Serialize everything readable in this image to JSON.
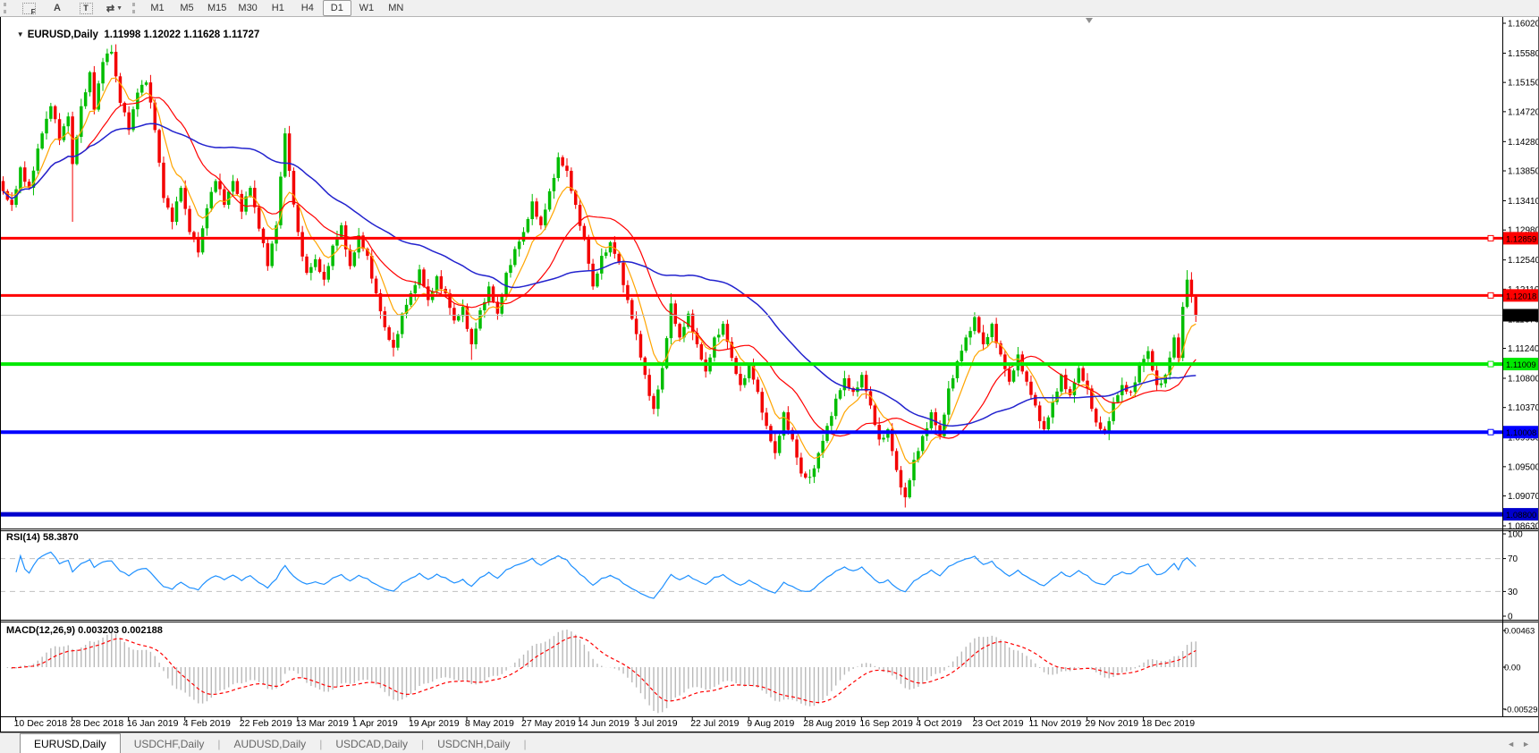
{
  "toolbar": {
    "tools": [
      {
        "name": "fibonacci-tool",
        "glyph": "F"
      },
      {
        "name": "text-tool",
        "glyph": "A"
      },
      {
        "name": "text-label-tool",
        "glyph": "T"
      },
      {
        "name": "arrows-tool",
        "glyph": "⇄",
        "caret": "▼"
      }
    ],
    "timeframes": [
      {
        "label": "M1",
        "active": false
      },
      {
        "label": "M5",
        "active": false
      },
      {
        "label": "M15",
        "active": false
      },
      {
        "label": "M30",
        "active": false
      },
      {
        "label": "H1",
        "active": false
      },
      {
        "label": "H4",
        "active": false
      },
      {
        "label": "D1",
        "active": true
      },
      {
        "label": "W1",
        "active": false
      },
      {
        "label": "MN",
        "active": false
      }
    ]
  },
  "chart": {
    "dropdown_glyph": "▼",
    "title_symbol": "EURUSD,Daily",
    "quote": "1.11998 1.12022 1.11628 1.11727",
    "open": "1.11998",
    "high": "1.12022",
    "low": "1.11628",
    "close": "1.11727",
    "colors": {
      "bull": "#00BD00",
      "bear": "#F30000",
      "background": "#FFFFFF",
      "border": "#000000"
    }
  },
  "price_axis": {
    "ticks": [
      "1.16020",
      "1.15580",
      "1.15150",
      "1.14720",
      "1.14280",
      "1.13850",
      "1.13410",
      "1.12980",
      "1.12540",
      "1.12110",
      "1.11670",
      "1.11240",
      "1.10800",
      "1.10370",
      "1.09930",
      "1.09500",
      "1.09070",
      "1.08630"
    ]
  },
  "levels": [
    {
      "label": "1.12859",
      "value": 1.12859,
      "color": "#FF0000",
      "text_color": "#FFFFFF",
      "width": 3,
      "handle": true
    },
    {
      "label": "1.12018",
      "value": 1.12018,
      "color": "#FF0000",
      "text_color": "#FFFFFF",
      "width": 3,
      "handle": true
    },
    {
      "label": "1.11009",
      "value": 1.11009,
      "color": "#00E800",
      "text_color": "#000000",
      "width": 4,
      "handle": true
    },
    {
      "label": "1.10008",
      "value": 1.10008,
      "color": "#0000FF",
      "text_color": "#FFFFFF",
      "width": 4,
      "handle": true
    },
    {
      "label": "1.08800",
      "value": 1.088,
      "color": "#0000CD",
      "text_color": "#FFFFFF",
      "width": 5,
      "handle": false
    }
  ],
  "current_price": {
    "label": "1.11727",
    "value": 1.11727,
    "line_color": "#BEBEBE",
    "badge_bg": "#000000",
    "badge_text": "#FFFFFF"
  },
  "moving_averages": [
    {
      "name": "fast-ma",
      "kind": "EMA",
      "period": 8,
      "color": "#FFA500",
      "width": 1.2
    },
    {
      "name": "mid-ma",
      "kind": "SMA",
      "period": 20,
      "color": "#FF0000",
      "width": 1.2
    },
    {
      "name": "slow-ma",
      "kind": "SMA",
      "period": 50,
      "color": "#2323CE",
      "width": 1.5
    }
  ],
  "rsi": {
    "label": "RSI(14) 58.3870",
    "period": 14,
    "current": 58.387,
    "color": "#1E90FF",
    "scale_ticks": [
      "100",
      "70",
      "30",
      "0"
    ],
    "dashed_levels": [
      70,
      30
    ]
  },
  "macd": {
    "label": "MACD(12,26,9) 0.003203 0.002188",
    "fast": 12,
    "slow": 26,
    "signal": 9,
    "current_macd": 0.003203,
    "current_signal": 0.002188,
    "hist_color": "#B9B9B9",
    "signal_color": "#FF0000",
    "scale_ticks": [
      "0.00463",
      "0.00",
      "-0.00529"
    ]
  },
  "date_axis": {
    "labels": [
      "10 Dec 2018",
      "28 Dec 2018",
      "16 Jan 2019",
      "4 Feb 2019",
      "22 Feb 2019",
      "13 Mar 2019",
      "1 Apr 2019",
      "19 Apr 2019",
      "8 May 2019",
      "27 May 2019",
      "14 Jun 2019",
      "3 Jul 2019",
      "22 Jul 2019",
      "9 Aug 2019",
      "28 Aug 2019",
      "16 Sep 2019",
      "4 Oct 2019",
      "23 Oct 2019",
      "11 Nov 2019",
      "29 Nov 2019",
      "18 Dec 2019"
    ]
  },
  "tabs": {
    "items": [
      {
        "label": "EURUSD,Daily",
        "active": true
      },
      {
        "label": "USDCHF,Daily",
        "active": false
      },
      {
        "label": "AUDUSD,Daily",
        "active": false
      },
      {
        "label": "USDCAD,Daily",
        "active": false
      },
      {
        "label": "USDCNH,Daily",
        "active": false
      }
    ],
    "nav_left": "◄",
    "nav_right": "►"
  },
  "chart_data": {
    "type": "candlestick",
    "symbol": "EURUSD",
    "timeframe": "Daily",
    "n_candles": 276,
    "y_range": [
      1.0859,
      1.161
    ],
    "x_start_label": "10 Dec 2018",
    "last_candle": {
      "o": 1.11998,
      "h": 1.12022,
      "l": 1.11628,
      "c": 1.11727
    },
    "close_path_waypoints": [
      [
        0,
        1.1355
      ],
      [
        2,
        1.1335
      ],
      [
        4,
        1.139
      ],
      [
        6,
        1.136
      ],
      [
        9,
        1.144
      ],
      [
        11,
        1.148
      ],
      [
        13,
        1.143
      ],
      [
        15,
        1.1465
      ],
      [
        16,
        1.1395
      ],
      [
        18,
        1.148
      ],
      [
        20,
        1.153
      ],
      [
        21,
        1.1475
      ],
      [
        23,
        1.1545
      ],
      [
        25,
        1.156
      ],
      [
        27,
        1.1485
      ],
      [
        29,
        1.1445
      ],
      [
        31,
        1.15
      ],
      [
        33,
        1.1515
      ],
      [
        35,
        1.1445
      ],
      [
        37,
        1.1345
      ],
      [
        39,
        1.131
      ],
      [
        41,
        1.136
      ],
      [
        43,
        1.1295
      ],
      [
        45,
        1.1265
      ],
      [
        47,
        1.133
      ],
      [
        49,
        1.137
      ],
      [
        51,
        1.1335
      ],
      [
        53,
        1.137
      ],
      [
        55,
        1.1325
      ],
      [
        57,
        1.136
      ],
      [
        59,
        1.13
      ],
      [
        61,
        1.1245
      ],
      [
        63,
        1.1305
      ],
      [
        65,
        1.144
      ],
      [
        66,
        1.1385
      ],
      [
        68,
        1.1295
      ],
      [
        70,
        1.1235
      ],
      [
        72,
        1.1255
      ],
      [
        74,
        1.1225
      ],
      [
        76,
        1.1275
      ],
      [
        78,
        1.1305
      ],
      [
        80,
        1.1245
      ],
      [
        82,
        1.129
      ],
      [
        84,
        1.126
      ],
      [
        86,
        1.1205
      ],
      [
        88,
        1.1155
      ],
      [
        90,
        1.1125
      ],
      [
        92,
        1.1175
      ],
      [
        94,
        1.1205
      ],
      [
        96,
        1.124
      ],
      [
        98,
        1.1195
      ],
      [
        100,
        1.123
      ],
      [
        102,
        1.1205
      ],
      [
        104,
        1.1165
      ],
      [
        106,
        1.1185
      ],
      [
        108,
        1.113
      ],
      [
        110,
        1.118
      ],
      [
        112,
        1.1215
      ],
      [
        114,
        1.1175
      ],
      [
        116,
        1.1235
      ],
      [
        118,
        1.127
      ],
      [
        120,
        1.1295
      ],
      [
        122,
        1.134
      ],
      [
        124,
        1.1305
      ],
      [
        126,
        1.1355
      ],
      [
        128,
        1.1405
      ],
      [
        130,
        1.1385
      ],
      [
        132,
        1.1335
      ],
      [
        134,
        1.1285
      ],
      [
        136,
        1.1215
      ],
      [
        138,
        1.126
      ],
      [
        140,
        1.128
      ],
      [
        142,
        1.125
      ],
      [
        144,
        1.1195
      ],
      [
        146,
        1.1145
      ],
      [
        148,
        1.1085
      ],
      [
        150,
        1.1035
      ],
      [
        152,
        1.1095
      ],
      [
        154,
        1.119
      ],
      [
        156,
        1.114
      ],
      [
        158,
        1.1175
      ],
      [
        160,
        1.113
      ],
      [
        162,
        1.109
      ],
      [
        164,
        1.114
      ],
      [
        166,
        1.116
      ],
      [
        168,
        1.111
      ],
      [
        170,
        1.107
      ],
      [
        172,
        1.11
      ],
      [
        174,
        1.106
      ],
      [
        176,
        1.101
      ],
      [
        178,
        1.097
      ],
      [
        180,
        1.103
      ],
      [
        182,
        1.099
      ],
      [
        184,
        1.094
      ],
      [
        186,
        1.0935
      ],
      [
        188,
        1.097
      ],
      [
        190,
        1.101
      ],
      [
        192,
        1.105
      ],
      [
        194,
        1.108
      ],
      [
        196,
        1.106
      ],
      [
        198,
        1.1085
      ],
      [
        200,
        1.104
      ],
      [
        202,
        1.099
      ],
      [
        204,
        1.1005
      ],
      [
        206,
        1.0945
      ],
      [
        208,
        1.0905
      ],
      [
        210,
        1.096
      ],
      [
        212,
        1.0995
      ],
      [
        214,
        1.103
      ],
      [
        216,
        1.0995
      ],
      [
        218,
        1.1065
      ],
      [
        220,
        1.1105
      ],
      [
        222,
        1.114
      ],
      [
        224,
        1.117
      ],
      [
        226,
        1.113
      ],
      [
        228,
        1.116
      ],
      [
        230,
        1.1115
      ],
      [
        232,
        1.1075
      ],
      [
        234,
        1.1115
      ],
      [
        236,
        1.1075
      ],
      [
        238,
        1.104
      ],
      [
        240,
        1.1005
      ],
      [
        242,
        1.1045
      ],
      [
        244,
        1.1085
      ],
      [
        246,
        1.1055
      ],
      [
        248,
        1.1095
      ],
      [
        250,
        1.1065
      ],
      [
        252,
        1.1015
      ],
      [
        254,
        1.1
      ],
      [
        256,
        1.1045
      ],
      [
        258,
        1.107
      ],
      [
        260,
        1.106
      ],
      [
        262,
        1.11
      ],
      [
        264,
        1.112
      ],
      [
        266,
        1.107
      ],
      [
        268,
        1.1085
      ],
      [
        270,
        1.114
      ],
      [
        271,
        1.111
      ],
      [
        272,
        1.1185
      ],
      [
        273,
        1.1225
      ],
      [
        274,
        1.12
      ],
      [
        275,
        1.1173
      ]
    ],
    "wick_spikes": [
      [
        16,
        "low",
        1.131
      ],
      [
        25,
        "high",
        1.157
      ],
      [
        65,
        "high",
        1.1448
      ],
      [
        90,
        "low",
        1.1112
      ],
      [
        108,
        "low",
        1.1107
      ],
      [
        128,
        "high",
        1.1412
      ],
      [
        150,
        "low",
        1.1027
      ],
      [
        154,
        "high",
        1.1205
      ],
      [
        187,
        "low",
        1.0926
      ],
      [
        208,
        "low",
        1.089
      ],
      [
        273,
        "high",
        1.1239
      ]
    ],
    "jitter": [
      8,
      -5,
      11,
      -9,
      4,
      -12,
      7,
      -3,
      10,
      -7,
      3,
      -10,
      12,
      -4,
      6,
      -11
    ],
    "wicks": [
      7,
      3,
      11,
      5,
      2,
      9,
      4,
      6
    ]
  }
}
